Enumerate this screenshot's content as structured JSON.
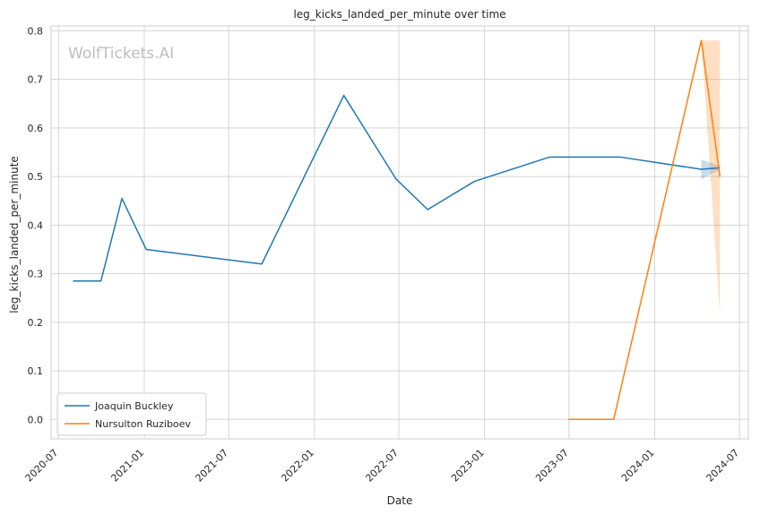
{
  "chart_data": {
    "type": "line",
    "title": "leg_kicks_landed_per_minute over time",
    "xlabel": "Date",
    "ylabel": "leg_kicks_landed_per_minute",
    "watermark": "WolfTickets.AI",
    "x_ticks": [
      "2020-07",
      "2021-01",
      "2021-07",
      "2022-01",
      "2022-07",
      "2023-01",
      "2023-07",
      "2024-01",
      "2024-07"
    ],
    "y_ticks": [
      "0.0",
      "0.1",
      "0.2",
      "0.3",
      "0.4",
      "0.5",
      "0.6",
      "0.7",
      "0.8"
    ],
    "ylim": [
      -0.04,
      0.81
    ],
    "xlim": [
      "2020-06-15",
      "2024-07-20"
    ],
    "grid": true,
    "legend_position": "lower-left",
    "series": [
      {
        "name": "Joaquin Buckley",
        "color": "#1f77b4",
        "points": [
          {
            "x": "2020-08-01",
            "y": 0.285
          },
          {
            "x": "2020-09-30",
            "y": 0.285
          },
          {
            "x": "2020-11-14",
            "y": 0.455
          },
          {
            "x": "2021-01-05",
            "y": 0.35
          },
          {
            "x": "2021-09-10",
            "y": 0.32
          },
          {
            "x": "2022-03-05",
            "y": 0.667
          },
          {
            "x": "2022-06-25",
            "y": 0.495
          },
          {
            "x": "2022-09-01",
            "y": 0.432
          },
          {
            "x": "2022-12-10",
            "y": 0.49
          },
          {
            "x": "2023-05-20",
            "y": 0.54
          },
          {
            "x": "2023-10-20",
            "y": 0.54
          },
          {
            "x": "2024-04-10",
            "y": 0.515
          },
          {
            "x": "2024-05-20",
            "y": 0.518
          }
        ],
        "band": [
          {
            "x": "2024-04-10",
            "lo": 0.495,
            "hi": 0.535
          },
          {
            "x": "2024-05-20",
            "lo": 0.514,
            "hi": 0.522
          }
        ]
      },
      {
        "name": "Nursulton Ruziboev",
        "color": "#ff7f0e",
        "points": [
          {
            "x": "2023-06-30",
            "y": 0.0
          },
          {
            "x": "2023-10-05",
            "y": 0.0
          },
          {
            "x": "2024-04-10",
            "y": 0.78
          },
          {
            "x": "2024-05-20",
            "y": 0.5
          }
        ],
        "band": [
          {
            "x": "2024-04-10",
            "lo": 0.78,
            "hi": 0.78
          },
          {
            "x": "2024-05-20",
            "lo": 0.215,
            "hi": 0.78
          }
        ]
      }
    ]
  }
}
